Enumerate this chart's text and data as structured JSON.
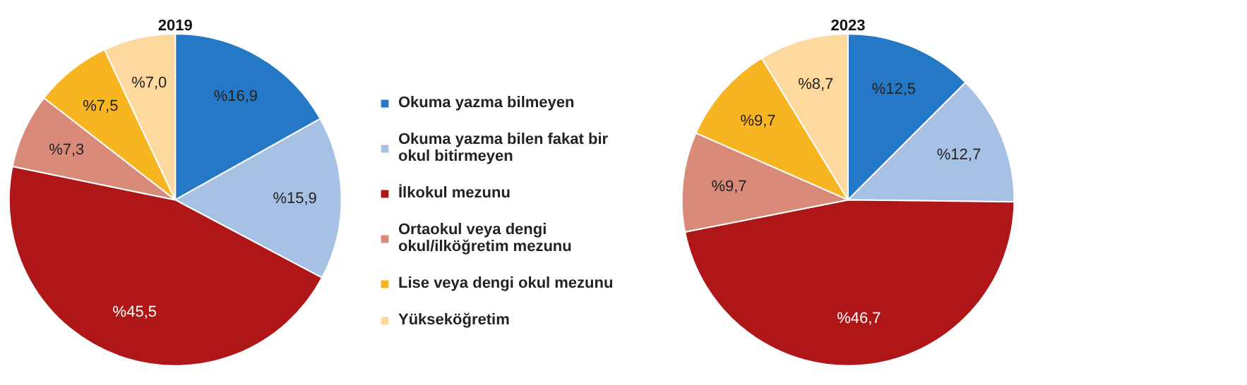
{
  "chart_data": [
    {
      "type": "pie",
      "title": "2019",
      "categories": [
        "Okuma yazma bilmeyen",
        "Okuma yazma bilen fakat bir okul bitirmeyen",
        "İlkokul mezunu",
        "Ortaokul veya dengi okul/ilköğretim mezunu",
        "Lise veya dengi okul mezunu",
        "Yükseköğretim"
      ],
      "values": [
        16.9,
        15.9,
        45.5,
        7.3,
        7.5,
        7.0
      ],
      "value_labels": [
        "%16,9",
        "%15,9",
        "%45,5",
        "%7,3",
        "%7,5",
        "%7,0"
      ],
      "colors": [
        "#2478c6",
        "#a7c1e5",
        "#ae1617",
        "#d98a79",
        "#f8b522",
        "#fdd9a0"
      ],
      "legend": "right"
    },
    {
      "type": "pie",
      "title": "2023",
      "values": [
        12.5,
        12.7,
        46.7,
        9.7,
        9.7,
        8.7
      ],
      "value_labels": [
        "%12,5",
        "%12,7",
        "%46,7",
        "%9,7",
        "%9,7",
        "%8,7"
      ],
      "colors": [
        "#2478c6",
        "#a7c1e5",
        "#ae1617",
        "#d98a79",
        "#f8b522",
        "#fdd9a0"
      ]
    }
  ]
}
